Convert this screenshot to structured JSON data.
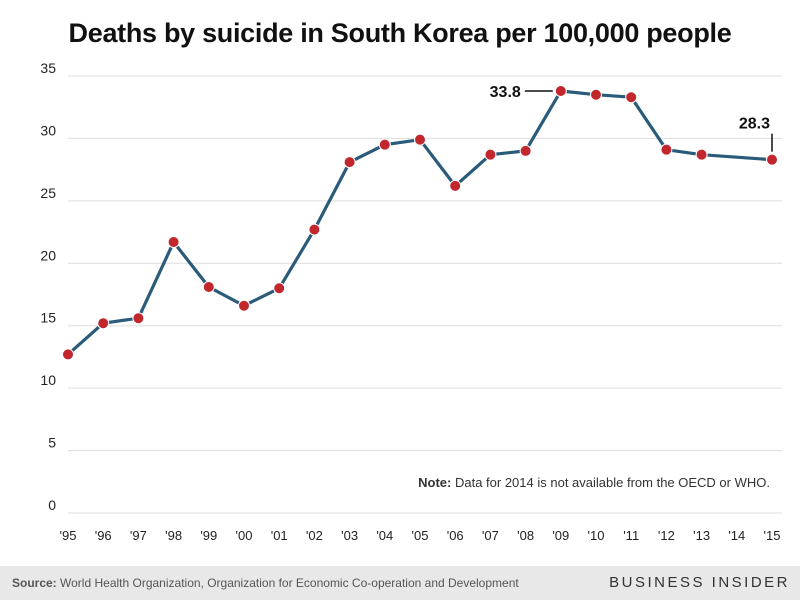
{
  "chart_data": {
    "type": "line",
    "title": "Deaths by suicide in South Korea per 100,000 people",
    "categories": [
      "'95",
      "'96",
      "'97",
      "'98",
      "'99",
      "'00",
      "'01",
      "'02",
      "'03",
      "'04",
      "'05",
      "'06",
      "'07",
      "'08",
      "'09",
      "'10",
      "'11",
      "'12",
      "'13",
      "'14",
      "'15"
    ],
    "series": [
      {
        "values": [
          12.7,
          15.2,
          15.6,
          21.7,
          18.1,
          16.6,
          18.0,
          22.7,
          28.1,
          29.5,
          29.9,
          26.2,
          28.7,
          29.0,
          33.8,
          33.5,
          33.3,
          29.1,
          28.7,
          null,
          28.3
        ]
      }
    ],
    "ylim": [
      0,
      35
    ],
    "yticks": [
      "0",
      "5",
      "10",
      "15",
      "20",
      "25",
      "30",
      "35"
    ],
    "data_labels": [
      {
        "index": 14,
        "text": "33.8"
      },
      {
        "index": 20,
        "text": "28.3"
      }
    ],
    "grid": true,
    "line_color": "#2a5b7a",
    "marker_color": "#c1272d"
  },
  "note": {
    "label": "Note:",
    "text": " Data for 2014 is not available from the OECD or WHO."
  },
  "footer": {
    "source_label": "Source:",
    "source_text": " World Health Organization, Organization for Economic Co-operation and Development",
    "brand": "BUSINESS INSIDER"
  }
}
